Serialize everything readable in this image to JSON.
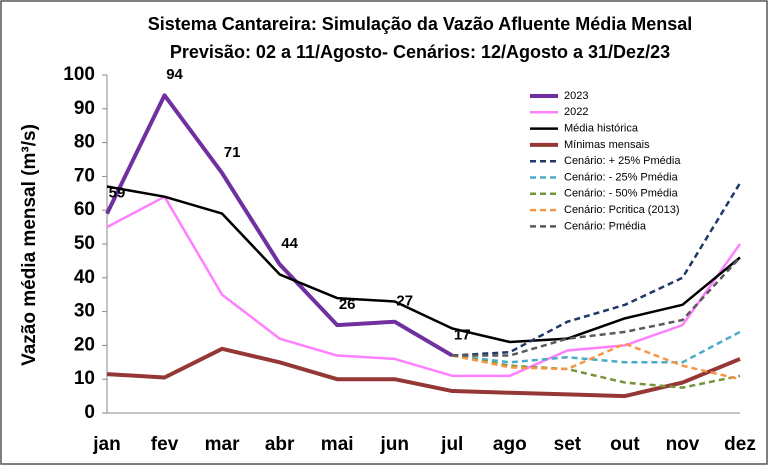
{
  "chart_data": {
    "type": "line",
    "title": "Sistema Cantareira: Simulação da Vazão Afluente Média Mensal",
    "subtitle": "Previsão: 02 a 11/Agosto- Cenários: 12/Agosto a 31/Dez/23",
    "y_label": "Vazão média mensal (m³/s)",
    "categories": [
      "jan",
      "fev",
      "mar",
      "abr",
      "mai",
      "jun",
      "jul",
      "ago",
      "set",
      "out",
      "nov",
      "dez"
    ],
    "ylim": [
      0,
      100
    ],
    "yticks": [
      0,
      10,
      20,
      30,
      40,
      50,
      60,
      70,
      80,
      90,
      100
    ],
    "grid": false,
    "legend": "upper-right",
    "series": [
      {
        "name": "2023",
        "color": "#7030a0",
        "width": 4,
        "dash": false,
        "show_labels": true,
        "values": [
          59,
          94,
          71,
          44,
          26,
          27,
          17,
          null,
          null,
          null,
          null,
          null
        ]
      },
      {
        "name": "2022",
        "color": "#ff80ff",
        "width": 2.5,
        "dash": false,
        "values": [
          55,
          64,
          35,
          22,
          17,
          16,
          11,
          11,
          18.5,
          20,
          26,
          50
        ]
      },
      {
        "name": "Média histórica",
        "color": "#000000",
        "width": 2.5,
        "dash": false,
        "values": [
          67,
          64,
          59,
          41,
          34,
          33,
          25,
          21,
          22,
          28,
          32,
          46
        ]
      },
      {
        "name": "Mínimas mensais",
        "color": "#953735",
        "width": 4,
        "dash": false,
        "values": [
          11.5,
          10.5,
          19,
          15,
          10,
          10,
          6.5,
          6,
          5.5,
          5,
          9,
          16
        ]
      },
      {
        "name": "Cenário: + 25% Pmédia",
        "color": "#1f3864",
        "width": 2.5,
        "dash": true,
        "values": [
          null,
          null,
          null,
          null,
          null,
          null,
          17,
          18,
          27,
          32,
          40,
          68
        ]
      },
      {
        "name": "Cenário: - 25% Pmédia",
        "color": "#4bacc6",
        "width": 2.5,
        "dash": true,
        "values": [
          null,
          null,
          null,
          null,
          null,
          null,
          17,
          15,
          16.5,
          15,
          15,
          24
        ]
      },
      {
        "name": "Cenário: - 50% Pmédia",
        "color": "#77933c",
        "width": 2.5,
        "dash": true,
        "values": [
          null,
          null,
          null,
          null,
          null,
          null,
          17,
          14,
          13,
          9,
          7.5,
          11
        ]
      },
      {
        "name": "Cenário: Pcritica (2013)",
        "color": "#f79646",
        "width": 2.5,
        "dash": true,
        "values": [
          null,
          null,
          null,
          null,
          null,
          null,
          17,
          13.5,
          13,
          20.5,
          14,
          10
        ]
      },
      {
        "name": "Cenário: Pmédia",
        "color": "#595959",
        "width": 2.5,
        "dash": true,
        "values": [
          null,
          null,
          null,
          null,
          null,
          null,
          17,
          17,
          22,
          24,
          27.5,
          46
        ]
      }
    ]
  }
}
